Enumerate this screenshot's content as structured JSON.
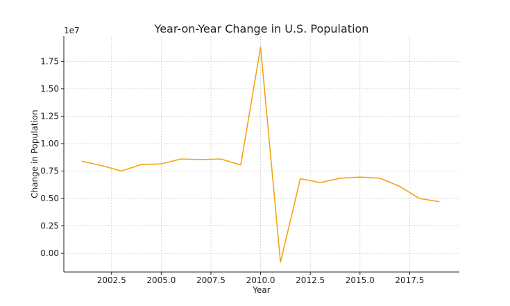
{
  "chart_data": {
    "type": "line",
    "title": "Year-on-Year Change in U.S. Population",
    "xlabel": "Year",
    "ylabel": "Change in Population",
    "y_offset_label": "1e7",
    "x_ticks": [
      2002.5,
      2005.0,
      2007.5,
      2010.0,
      2012.5,
      2015.0,
      2017.5
    ],
    "x_tick_labels": [
      "2002.5",
      "2005.0",
      "2007.5",
      "2010.0",
      "2012.5",
      "2015.0",
      "2017.5"
    ],
    "y_ticks": [
      0.0,
      0.25,
      0.5,
      0.75,
      1.0,
      1.25,
      1.5,
      1.75
    ],
    "y_tick_labels": [
      "0.00",
      "0.25",
      "0.50",
      "0.75",
      "1.00",
      "1.25",
      "1.50",
      "1.75"
    ],
    "xlim": [
      2000.1,
      2020.0
    ],
    "ylim": [
      -0.17,
      1.98
    ],
    "grid": true,
    "series": [
      {
        "color": "#f5a30f",
        "x": [
          2001,
          2002,
          2003,
          2004,
          2005,
          2006,
          2007,
          2008,
          2009,
          2010,
          2011,
          2012,
          2013,
          2014,
          2015,
          2016,
          2017,
          2018,
          2019
        ],
        "y": [
          0.84,
          0.8,
          0.75,
          0.81,
          0.815,
          0.86,
          0.855,
          0.86,
          0.805,
          1.88,
          -0.08,
          0.68,
          0.645,
          0.685,
          0.695,
          0.685,
          0.61,
          0.5,
          0.47
        ]
      }
    ]
  }
}
